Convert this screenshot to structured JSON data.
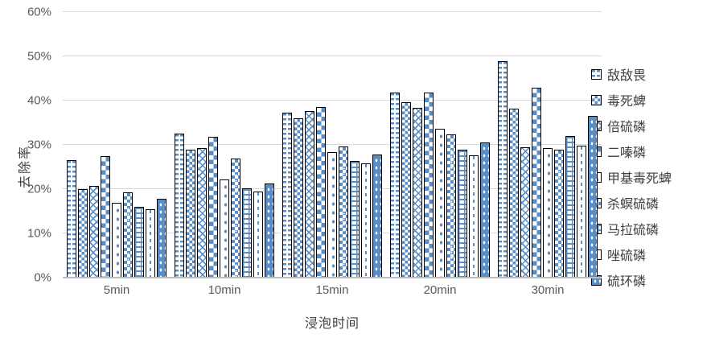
{
  "chart_data": {
    "type": "bar",
    "title": "",
    "xlabel": "浸泡时间",
    "ylabel": "去除率",
    "ylim": [
      0,
      60
    ],
    "y_tick_step": 10,
    "y_ticks": [
      "0%",
      "10%",
      "20%",
      "30%",
      "40%",
      "50%",
      "60%"
    ],
    "grid": true,
    "legend_position": "right",
    "categories": [
      "5min",
      "10min",
      "15min",
      "20min",
      "30min"
    ],
    "series": [
      {
        "name": "敌敌畏",
        "pattern": "dash-grid",
        "values": [
          26.5,
          32.5,
          37.2,
          41.8,
          49.0
        ]
      },
      {
        "name": "毒死蜱",
        "pattern": "small-checker",
        "values": [
          20.0,
          29.0,
          36.0,
          39.6,
          38.2
        ]
      },
      {
        "name": "倍硫磷",
        "pattern": "diagonal-lattice",
        "values": [
          20.8,
          29.2,
          37.7,
          38.4,
          29.5
        ]
      },
      {
        "name": "二嗪磷",
        "pattern": "large-checker",
        "values": [
          27.4,
          31.9,
          38.6,
          41.8,
          43.0
        ]
      },
      {
        "name": "甲基毒死蜱",
        "pattern": "sparse-dots",
        "values": [
          17.0,
          22.2,
          28.4,
          33.6,
          29.2
        ]
      },
      {
        "name": "杀螟硫磷",
        "pattern": "dotted-checker",
        "values": [
          19.3,
          27.0,
          29.7,
          32.4,
          29.0
        ]
      },
      {
        "name": "马拉硫磷",
        "pattern": "ladder",
        "values": [
          16.0,
          20.2,
          26.4,
          28.9,
          32.0
        ]
      },
      {
        "name": "唑硫磷",
        "pattern": "vertical-dash",
        "values": [
          15.5,
          19.5,
          25.8,
          27.6,
          29.9
        ]
      },
      {
        "name": "硫环磷",
        "pattern": "solid-dots",
        "values": [
          17.8,
          21.2,
          27.9,
          30.6,
          36.5
        ]
      }
    ],
    "colors": {
      "bar_blue": "#5b8dc5",
      "bar_outline": "#000000",
      "gridline": "#d9d9d9",
      "axis_line": "#bfbfbf",
      "tick_text": "#595959",
      "title_text": "#404040"
    }
  }
}
